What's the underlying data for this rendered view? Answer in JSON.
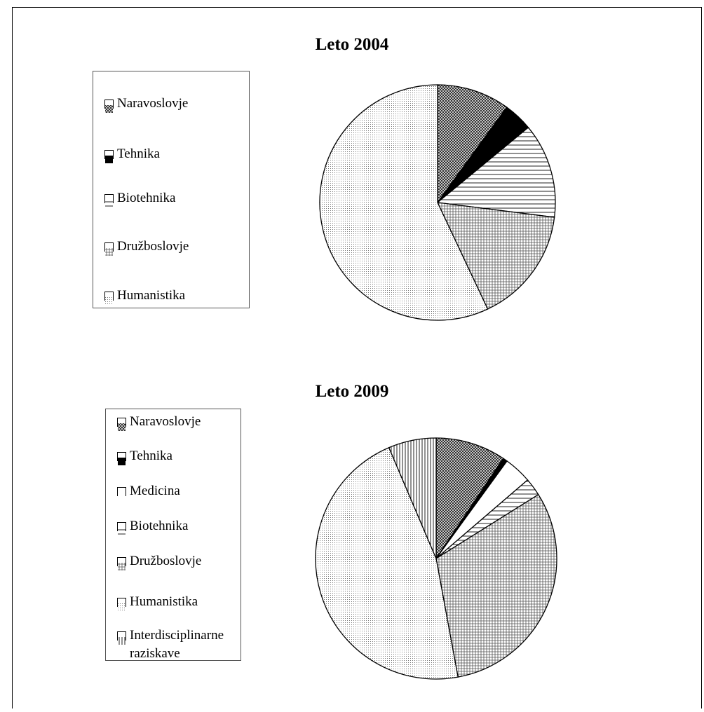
{
  "chart_data": [
    {
      "type": "pie",
      "title": "Leto 2004",
      "categories": [
        "Naravoslovje",
        "Tehnika",
        "Biotehnika",
        "Družboslovje",
        "Humanistika"
      ],
      "values": [
        10,
        4,
        13,
        16,
        57
      ],
      "patterns": [
        "crosshatch",
        "black",
        "horizontal",
        "grid",
        "dots"
      ]
    },
    {
      "type": "pie",
      "title": "Leto 2009",
      "categories": [
        "Naravoslovje",
        "Tehnika",
        "Medicina",
        "Biotehnika",
        "Družboslovje",
        "Humanistika",
        "Interdisciplinarne raziskave"
      ],
      "values": [
        9.4,
        0.6,
        3.7,
        2.4,
        31,
        46.5,
        6.4
      ],
      "patterns": [
        "crosshatch",
        "black",
        "white",
        "horizontal",
        "grid",
        "dots",
        "vertical"
      ]
    }
  ]
}
